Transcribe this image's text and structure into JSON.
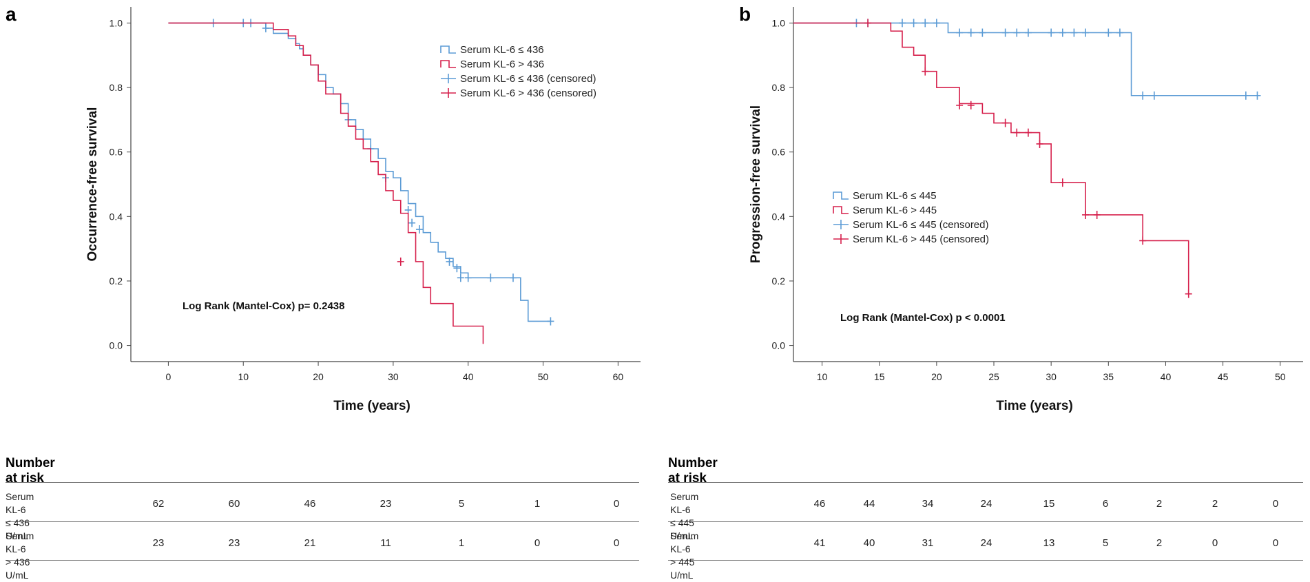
{
  "chart_data": [
    {
      "type": "line",
      "panel_label": "a",
      "xlabel": "Time (years)",
      "ylabel": "Occurrence-free survival",
      "xlim": [
        -5,
        63
      ],
      "ylim": [
        -0.05,
        1.05
      ],
      "xticks": [
        0,
        10,
        20,
        30,
        40,
        50,
        60
      ],
      "yticks": [
        0.0,
        0.2,
        0.4,
        0.6,
        0.8,
        1.0
      ],
      "ytick_labels": [
        "0.0",
        "0.2",
        "0.4",
        "0.6",
        "0.8",
        "1.0"
      ],
      "annotation": "Log Rank (Mantel-Cox) p= 0.2438",
      "legend": {
        "placement": "top-right",
        "entries": [
          {
            "label": "Serum KL-6 ≤ 436",
            "color": "#5b9bd5",
            "censored": false
          },
          {
            "label": "Serum KL-6 > 436",
            "color": "#d6204c",
            "censored": false
          },
          {
            "label": "Serum KL-6 ≤ 436 (censored)",
            "color": "#5b9bd5",
            "censored": true
          },
          {
            "label": "Serum KL-6 > 436 (censored)",
            "color": "#d6204c",
            "censored": true
          }
        ]
      },
      "series": [
        {
          "name": "Serum KL-6 ≤ 436",
          "color": "#5b9bd5",
          "steps": [
            [
              0,
              1.0
            ],
            [
              13,
              0.984
            ],
            [
              14,
              0.968
            ],
            [
              16,
              0.952
            ],
            [
              17,
              0.936
            ],
            [
              17.5,
              0.92
            ],
            [
              18,
              0.9
            ],
            [
              19,
              0.87
            ],
            [
              20,
              0.84
            ],
            [
              21,
              0.8
            ],
            [
              22,
              0.78
            ],
            [
              23,
              0.75
            ],
            [
              24,
              0.7
            ],
            [
              25,
              0.67
            ],
            [
              26,
              0.64
            ],
            [
              27,
              0.61
            ],
            [
              28,
              0.58
            ],
            [
              29,
              0.54
            ],
            [
              30,
              0.52
            ],
            [
              31,
              0.48
            ],
            [
              32,
              0.44
            ],
            [
              33,
              0.4
            ],
            [
              34,
              0.35
            ],
            [
              35,
              0.32
            ],
            [
              36,
              0.29
            ],
            [
              37,
              0.27
            ],
            [
              38,
              0.245
            ],
            [
              39,
              0.225
            ],
            [
              40,
              0.21
            ],
            [
              47,
              0.14
            ],
            [
              48,
              0.075
            ]
          ],
          "end_x": 51,
          "censored": [
            [
              6,
              1.0
            ],
            [
              10,
              1.0
            ],
            [
              11,
              1.0
            ],
            [
              13,
              0.984
            ],
            [
              24,
              0.7
            ],
            [
              27,
              0.61
            ],
            [
              29,
              0.52
            ],
            [
              32,
              0.42
            ],
            [
              32.5,
              0.38
            ],
            [
              33.5,
              0.36
            ],
            [
              37.5,
              0.26
            ],
            [
              38.5,
              0.24
            ],
            [
              39,
              0.21
            ],
            [
              40,
              0.21
            ],
            [
              43,
              0.21
            ],
            [
              46,
              0.21
            ],
            [
              51,
              0.075
            ]
          ]
        },
        {
          "name": "Serum KL-6 > 436",
          "color": "#d6204c",
          "steps": [
            [
              0,
              1.0
            ],
            [
              14,
              0.98
            ],
            [
              16,
              0.96
            ],
            [
              17,
              0.93
            ],
            [
              18,
              0.9
            ],
            [
              19,
              0.87
            ],
            [
              20,
              0.82
            ],
            [
              21,
              0.78
            ],
            [
              23,
              0.72
            ],
            [
              24,
              0.68
            ],
            [
              25,
              0.64
            ],
            [
              26,
              0.61
            ],
            [
              27,
              0.57
            ],
            [
              28,
              0.53
            ],
            [
              29,
              0.48
            ],
            [
              30,
              0.45
            ],
            [
              31,
              0.41
            ],
            [
              32,
              0.35
            ],
            [
              33,
              0.26
            ],
            [
              34,
              0.18
            ],
            [
              35,
              0.13
            ],
            [
              38,
              0.06
            ],
            [
              42,
              0.005
            ]
          ],
          "end_x": 42,
          "censored": [
            [
              31,
              0.26
            ]
          ]
        }
      ],
      "number_at_risk": {
        "title": "Number at risk",
        "rows": [
          {
            "label_line1": "Serum KL-6",
            "label_line2": "≤ 436 U/mL",
            "values": [
              "62",
              "60",
              "46",
              "23",
              "5",
              "1",
              "0"
            ]
          },
          {
            "label_line1": "Serum KL-6",
            "label_line2": "> 436 U/mL",
            "values": [
              "23",
              "23",
              "21",
              "11",
              "1",
              "0",
              "0"
            ]
          }
        ]
      }
    },
    {
      "type": "line",
      "panel_label": "b",
      "xlabel": "Time (years)",
      "ylabel": "Progression-free survival",
      "xlim": [
        7.5,
        52
      ],
      "ylim": [
        -0.05,
        1.05
      ],
      "xticks": [
        10,
        15,
        20,
        25,
        30,
        35,
        40,
        45,
        50
      ],
      "yticks": [
        0.0,
        0.2,
        0.4,
        0.6,
        0.8,
        1.0
      ],
      "ytick_labels": [
        "0.0",
        "0.2",
        "0.4",
        "0.6",
        "0.8",
        "1.0"
      ],
      "annotation": "Log Rank (Mantel-Cox) p < 0.0001",
      "legend": {
        "placement": "center-left",
        "entries": [
          {
            "label": "Serum KL-6 ≤ 445",
            "color": "#5b9bd5",
            "censored": false
          },
          {
            "label": "Serum KL-6 > 445",
            "color": "#d6204c",
            "censored": false
          },
          {
            "label": "Serum KL-6 ≤ 445 (censored)",
            "color": "#5b9bd5",
            "censored": true
          },
          {
            "label": "Serum KL-6 > 445 (censored)",
            "color": "#d6204c",
            "censored": true
          }
        ]
      },
      "series": [
        {
          "name": "Serum KL-6 ≤ 445",
          "color": "#5b9bd5",
          "steps": [
            [
              7.5,
              1.0
            ],
            [
              21,
              0.97
            ],
            [
              37,
              0.775
            ]
          ],
          "end_x": 48,
          "censored": [
            [
              13,
              1.0
            ],
            [
              14,
              1.0
            ],
            [
              17,
              1.0
            ],
            [
              18,
              1.0
            ],
            [
              19,
              1.0
            ],
            [
              20,
              1.0
            ],
            [
              22,
              0.97
            ],
            [
              23,
              0.97
            ],
            [
              24,
              0.97
            ],
            [
              26,
              0.97
            ],
            [
              27,
              0.97
            ],
            [
              28,
              0.97
            ],
            [
              30,
              0.97
            ],
            [
              31,
              0.97
            ],
            [
              32,
              0.97
            ],
            [
              33,
              0.97
            ],
            [
              35,
              0.97
            ],
            [
              36,
              0.97
            ],
            [
              38,
              0.775
            ],
            [
              39,
              0.775
            ],
            [
              47,
              0.775
            ],
            [
              48,
              0.775
            ]
          ]
        },
        {
          "name": "Serum KL-6 > 445",
          "color": "#d6204c",
          "steps": [
            [
              7.5,
              1.0
            ],
            [
              16,
              0.975
            ],
            [
              17,
              0.925
            ],
            [
              18,
              0.9
            ],
            [
              19,
              0.85
            ],
            [
              20,
              0.8
            ],
            [
              22,
              0.75
            ],
            [
              24,
              0.72
            ],
            [
              25,
              0.69
            ],
            [
              26.5,
              0.66
            ],
            [
              29,
              0.625
            ],
            [
              30,
              0.505
            ],
            [
              33,
              0.405
            ],
            [
              38,
              0.325
            ],
            [
              42,
              0.16
            ]
          ],
          "end_x": 42,
          "censored": [
            [
              14,
              1.0
            ],
            [
              19,
              0.85
            ],
            [
              22,
              0.745
            ],
            [
              23,
              0.745
            ],
            [
              26,
              0.69
            ],
            [
              27,
              0.66
            ],
            [
              28,
              0.66
            ],
            [
              29,
              0.625
            ],
            [
              31,
              0.505
            ],
            [
              33,
              0.405
            ],
            [
              34,
              0.405
            ],
            [
              38,
              0.325
            ],
            [
              42,
              0.16
            ]
          ]
        }
      ],
      "number_at_risk": {
        "title": "Number at risk",
        "rows": [
          {
            "label_line1": "Serum KL-6",
            "label_line2": "≤ 445 U/mL",
            "values": [
              "46",
              "44",
              "34",
              "24",
              "15",
              "6",
              "2",
              "2",
              "0"
            ]
          },
          {
            "label_line1": "Serum KL-6",
            "label_line2": "> 445 U/mL",
            "values": [
              "41",
              "40",
              "31",
              "24",
              "13",
              "5",
              "2",
              "0",
              "0"
            ]
          }
        ]
      }
    }
  ]
}
